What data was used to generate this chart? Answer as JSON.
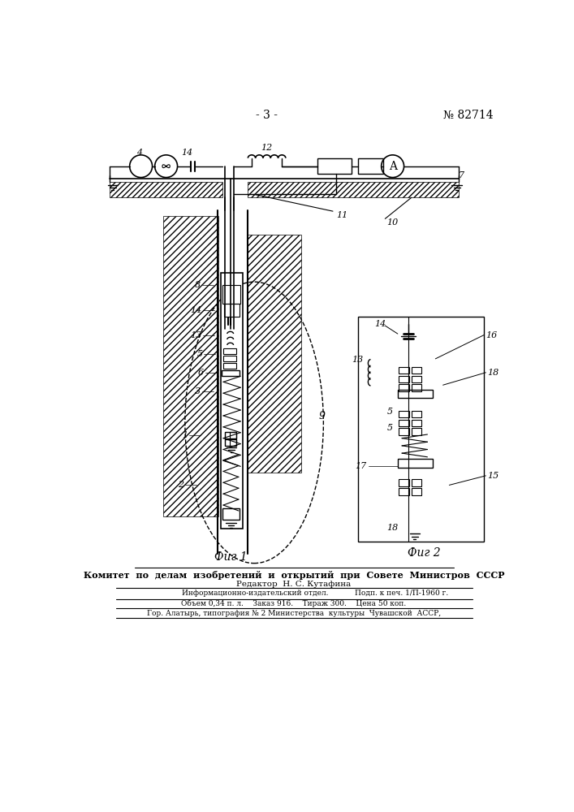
{
  "page_number": "- 3 -",
  "patent_number": "№ 82714",
  "fig1_label": "Фиг 1",
  "fig2_label": "Фиг 2",
  "footer_line1": "Комитет  по  делам  изобретений  и  открытий  при  Совете  Министров  СССР",
  "footer_editor": "Редактор  Н. С. Кутафина",
  "footer_info1a": "Информационно-издательский отдел.",
  "footer_info1b": "Подп. к печ. 1/П-1960 г.",
  "footer_info2a": "Объем 0,34 п. л.    Заказ 916.    Тираж 300.    Цена 50 коп.",
  "footer_info3": "Гор. Алатырь, типография № 2 Министерства  культуры  Чувашской  АССР,",
  "bg_color": "#ffffff",
  "line_color": "#000000"
}
